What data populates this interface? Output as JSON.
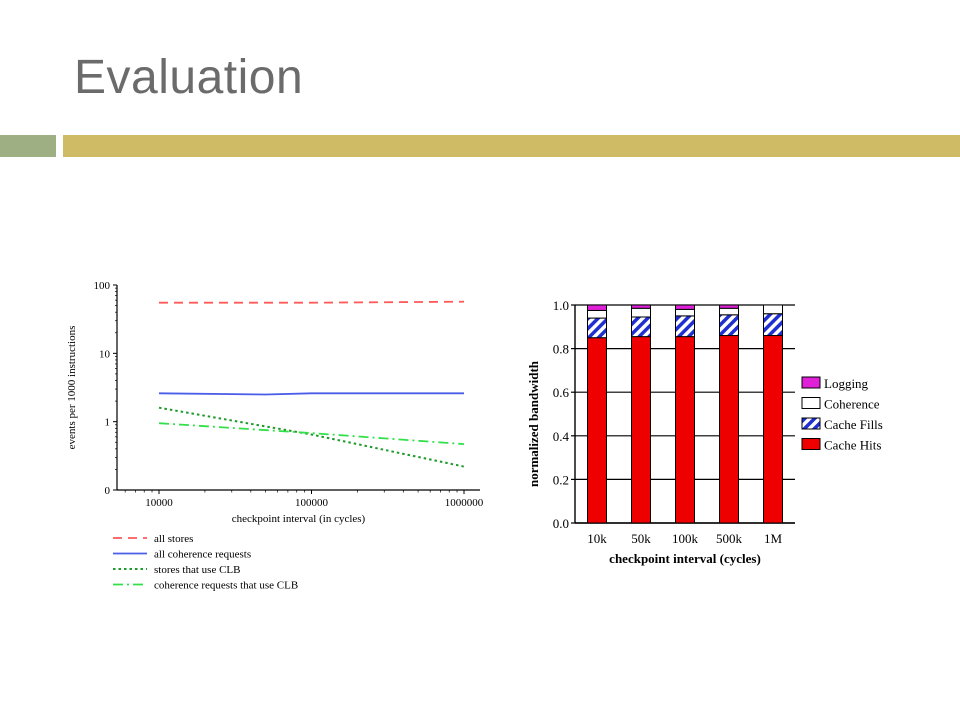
{
  "slide": {
    "title": "Evaluation",
    "accent_left_color": "#9daf83",
    "accent_right_color": "#cfba66"
  },
  "chart_data": [
    {
      "type": "line",
      "title": "",
      "xlabel": "checkpoint interval (in cycles)",
      "ylabel": "events per 1000 instructions",
      "x_scale": "log",
      "y_scale": "log",
      "xlim": [
        10000,
        1000000
      ],
      "ylim": [
        0.1,
        100
      ],
      "x_ticks": [
        {
          "value": 10000,
          "label": "10000"
        },
        {
          "value": 100000,
          "label": "100000"
        },
        {
          "value": 1000000,
          "label": "1000000"
        }
      ],
      "y_ticks": [
        {
          "value": 0.1,
          "label": "0"
        },
        {
          "value": 1,
          "label": "1"
        },
        {
          "value": 10,
          "label": "10"
        },
        {
          "value": 100,
          "label": "100"
        }
      ],
      "legend_position": "bottom",
      "series": [
        {
          "name": "all stores",
          "color": "#ff5a5a",
          "style": "dashed",
          "x": [
            10000,
            100000,
            1000000
          ],
          "y": [
            55,
            55,
            57
          ]
        },
        {
          "name": "all coherence requests",
          "color": "#4a5de8",
          "style": "solid",
          "x": [
            10000,
            50000,
            100000,
            1000000
          ],
          "y": [
            2.6,
            2.5,
            2.6,
            2.6
          ]
        },
        {
          "name": "stores that use CLB",
          "color": "#1e9a2a",
          "style": "dotted",
          "x": [
            10000,
            100000,
            1000000
          ],
          "y": [
            1.6,
            0.65,
            0.22
          ]
        },
        {
          "name": "coherence requests that use CLB",
          "color": "#33e04a",
          "style": "dashdot",
          "x": [
            10000,
            100000,
            1000000
          ],
          "y": [
            0.95,
            0.68,
            0.47
          ]
        }
      ]
    },
    {
      "type": "bar",
      "stacked": true,
      "title": "",
      "xlabel": "checkpoint interval (cycles)",
      "ylabel": "normalized bandwidth",
      "ylim": [
        0,
        1.0
      ],
      "y_ticks": [
        {
          "value": 0.0,
          "label": "0.0"
        },
        {
          "value": 0.2,
          "label": "0.2"
        },
        {
          "value": 0.4,
          "label": "0.4"
        },
        {
          "value": 0.6,
          "label": "0.6"
        },
        {
          "value": 0.8,
          "label": "0.8"
        },
        {
          "value": 1.0,
          "label": "1.0"
        }
      ],
      "grid": true,
      "legend_position": "right",
      "categories": [
        "10k",
        "50k",
        "100k",
        "500k",
        "1M"
      ],
      "series": [
        {
          "name": "Cache Hits",
          "color": "#ee0000",
          "pattern": "solid",
          "values": [
            0.85,
            0.855,
            0.855,
            0.86,
            0.86
          ]
        },
        {
          "name": "Cache Fills",
          "color": "#1f2fd0",
          "pattern": "hatch",
          "values": [
            0.09,
            0.09,
            0.095,
            0.095,
            0.1
          ]
        },
        {
          "name": "Coherence",
          "color": "#ffffff",
          "pattern": "solid",
          "values": [
            0.035,
            0.04,
            0.03,
            0.03,
            0.04
          ]
        },
        {
          "name": "Logging",
          "color": "#e020d8",
          "pattern": "solid",
          "values": [
            0.025,
            0.015,
            0.02,
            0.015,
            0.0
          ]
        }
      ],
      "legend_order": [
        "Logging",
        "Coherence",
        "Cache Fills",
        "Cache Hits"
      ]
    }
  ]
}
